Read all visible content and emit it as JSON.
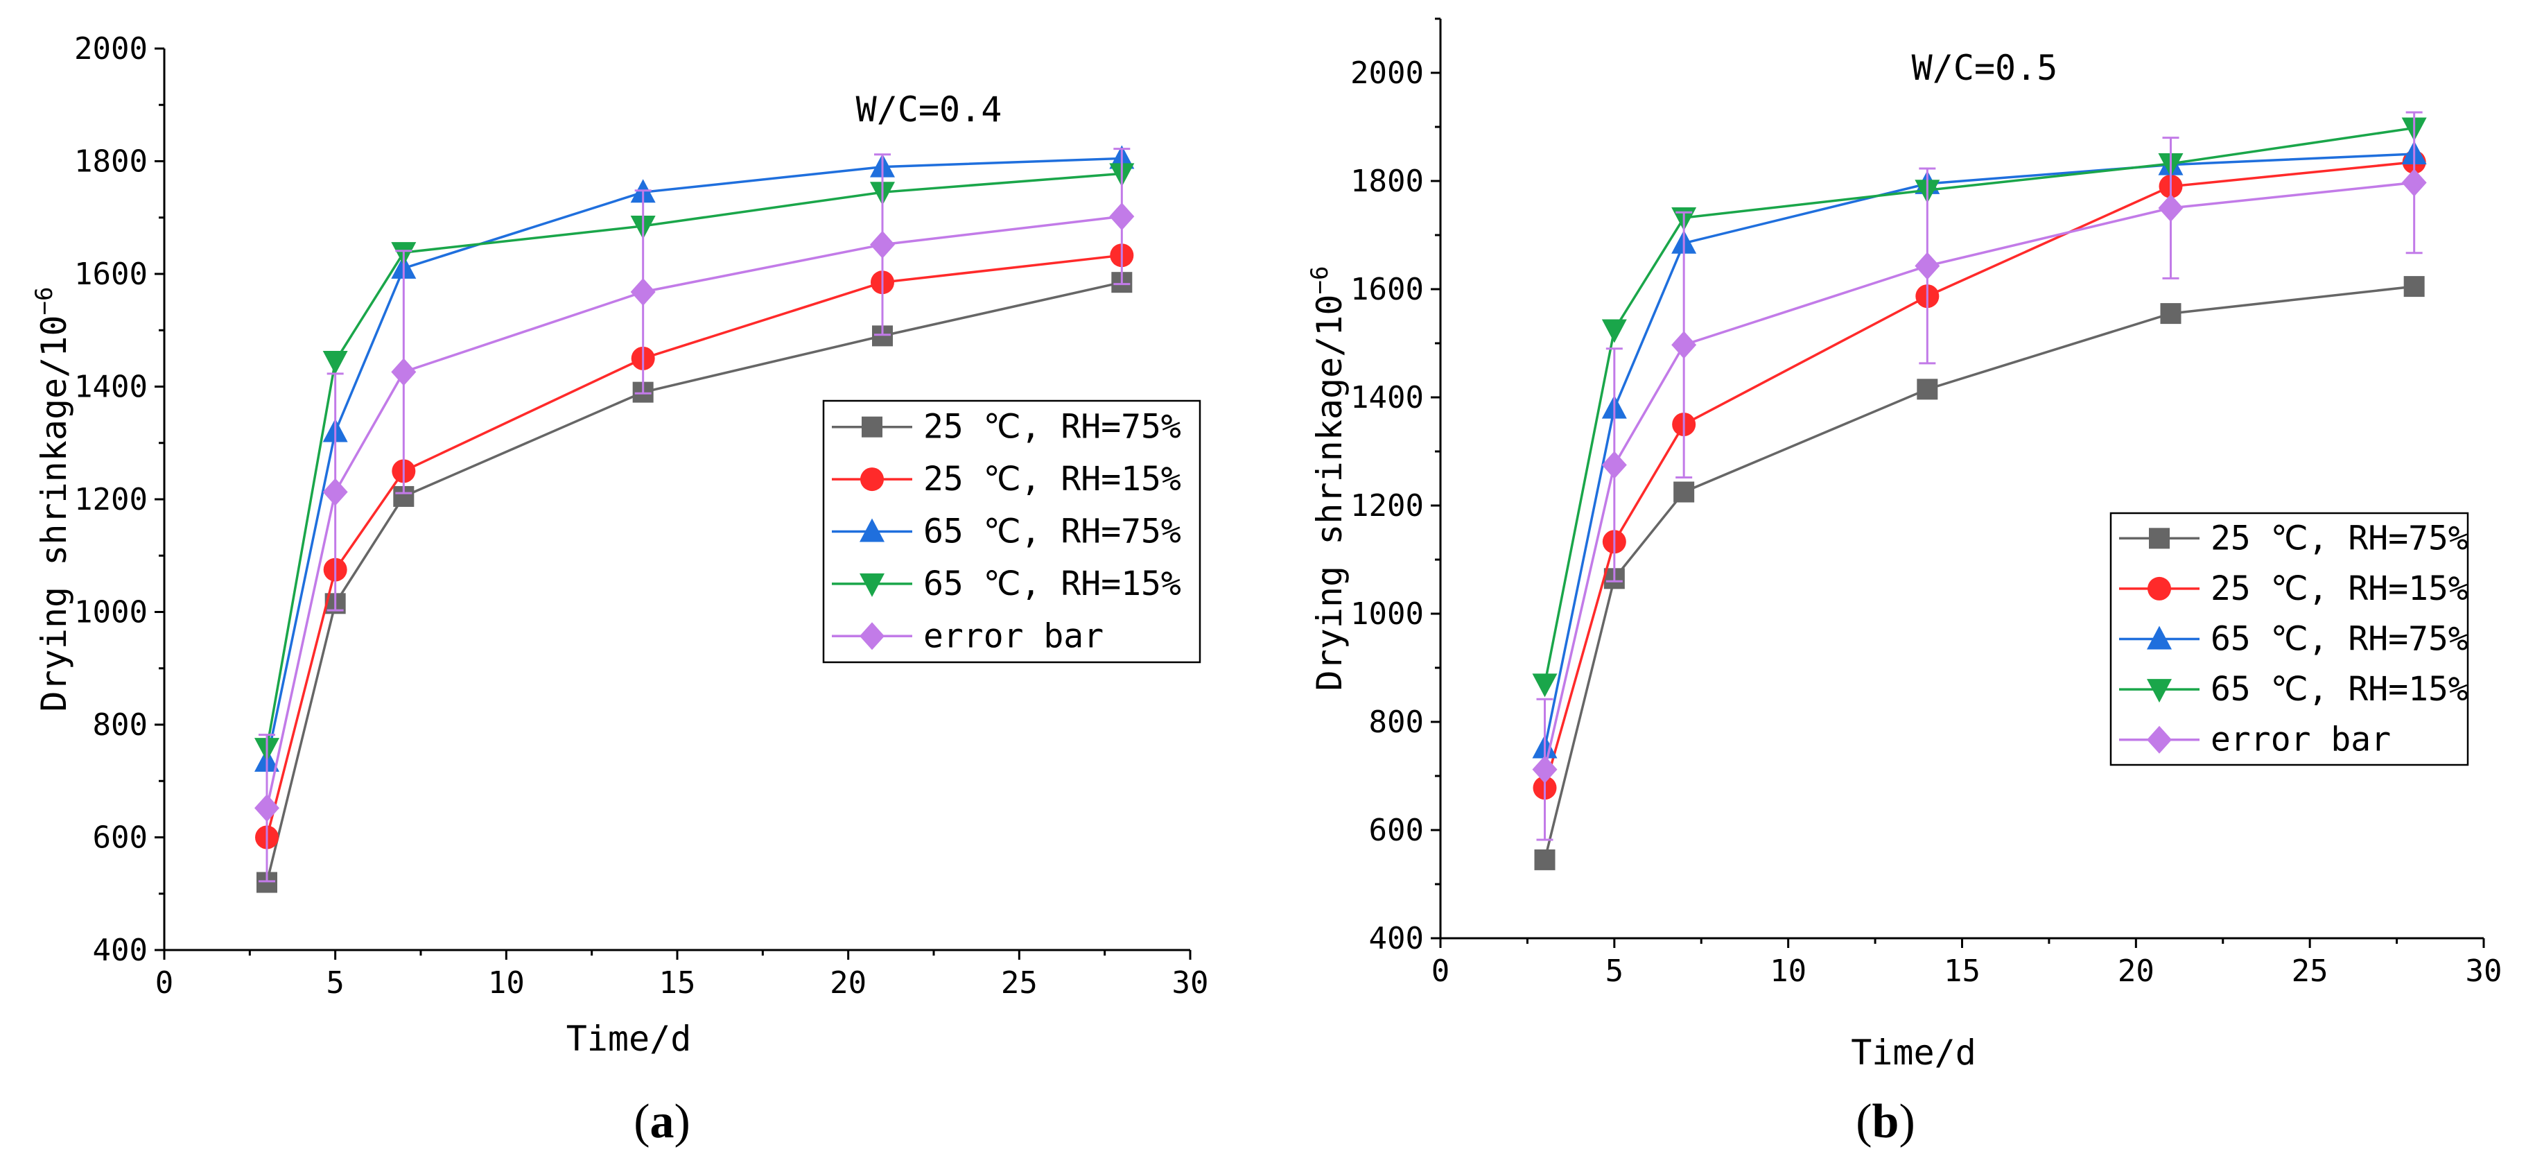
{
  "chart_data": [
    {
      "type": "line",
      "panel": "(a)",
      "panel_letter": "a",
      "annotation": "W/C=0.4",
      "xlabel": "Time/d",
      "ylabel": "Drying shrinkage/10",
      "ylabel_sup": "−6",
      "xlim": [
        0,
        30
      ],
      "ylim": [
        400,
        2000
      ],
      "xticks": [
        0,
        5,
        10,
        15,
        20,
        25,
        30
      ],
      "yticks": [
        400,
        600,
        800,
        1000,
        1200,
        1400,
        1600,
        1800,
        2000
      ],
      "legend_position": "right",
      "x": [
        3,
        5,
        7,
        14,
        21,
        28
      ],
      "series": [
        {
          "name": "25 ℃, RH=75%",
          "color": "#666666",
          "marker": "square",
          "values": [
            520,
            1015,
            1205,
            1390,
            1490,
            1585
          ]
        },
        {
          "name": "25 ℃, RH=15%",
          "color": "#ff2a2a",
          "marker": "circle",
          "values": [
            600,
            1075,
            1250,
            1450,
            1585,
            1633
          ]
        },
        {
          "name": "65 ℃, RH=75%",
          "color": "#1f6fdd",
          "marker": "triangle-up",
          "values": [
            735,
            1320,
            1610,
            1745,
            1790,
            1805
          ]
        },
        {
          "name": "65 ℃, RH=15%",
          "color": "#1aa64a",
          "marker": "triangle-down",
          "values": [
            758,
            1445,
            1638,
            1685,
            1745,
            1778
          ]
        },
        {
          "name": "error bar",
          "color": "#c27be8",
          "marker": "diamond",
          "values": [
            652,
            1213,
            1426,
            1568,
            1652,
            1702
          ],
          "err": [
            130,
            210,
            215,
            180,
            160,
            120
          ]
        }
      ]
    },
    {
      "type": "line",
      "panel": "(b)",
      "panel_letter": "b",
      "annotation": "W/C=0.5",
      "xlabel": "Time/d",
      "ylabel": "Drying shrinkage/10",
      "ylabel_sup": "−6",
      "xlim": [
        0,
        30
      ],
      "ylim": [
        400,
        2100
      ],
      "xticks": [
        0,
        5,
        10,
        15,
        20,
        25,
        30
      ],
      "yticks": [
        400,
        600,
        800,
        1000,
        1200,
        1400,
        1600,
        1800,
        2000
      ],
      "legend_position": "lower-right",
      "x": [
        3,
        5,
        7,
        14,
        21,
        28
      ],
      "series": [
        {
          "name": "25 ℃, RH=75%",
          "color": "#666666",
          "marker": "square",
          "values": [
            545,
            1065,
            1225,
            1415,
            1555,
            1605
          ]
        },
        {
          "name": "25 ℃, RH=15%",
          "color": "#ff2a2a",
          "marker": "circle",
          "values": [
            678,
            1133,
            1350,
            1587,
            1790,
            1835
          ]
        },
        {
          "name": "65 ℃, RH=75%",
          "color": "#1f6fdd",
          "marker": "triangle-up",
          "values": [
            752,
            1380,
            1685,
            1795,
            1830,
            1850
          ]
        },
        {
          "name": "65 ℃, RH=15%",
          "color": "#1aa64a",
          "marker": "triangle-down",
          "values": [
            870,
            1525,
            1732,
            1783,
            1832,
            1898
          ]
        },
        {
          "name": "error bar",
          "color": "#c27be8",
          "marker": "diamond",
          "values": [
            712,
            1275,
            1497,
            1643,
            1750,
            1797
          ],
          "err": [
            130,
            215,
            245,
            180,
            130,
            130
          ]
        }
      ]
    }
  ]
}
